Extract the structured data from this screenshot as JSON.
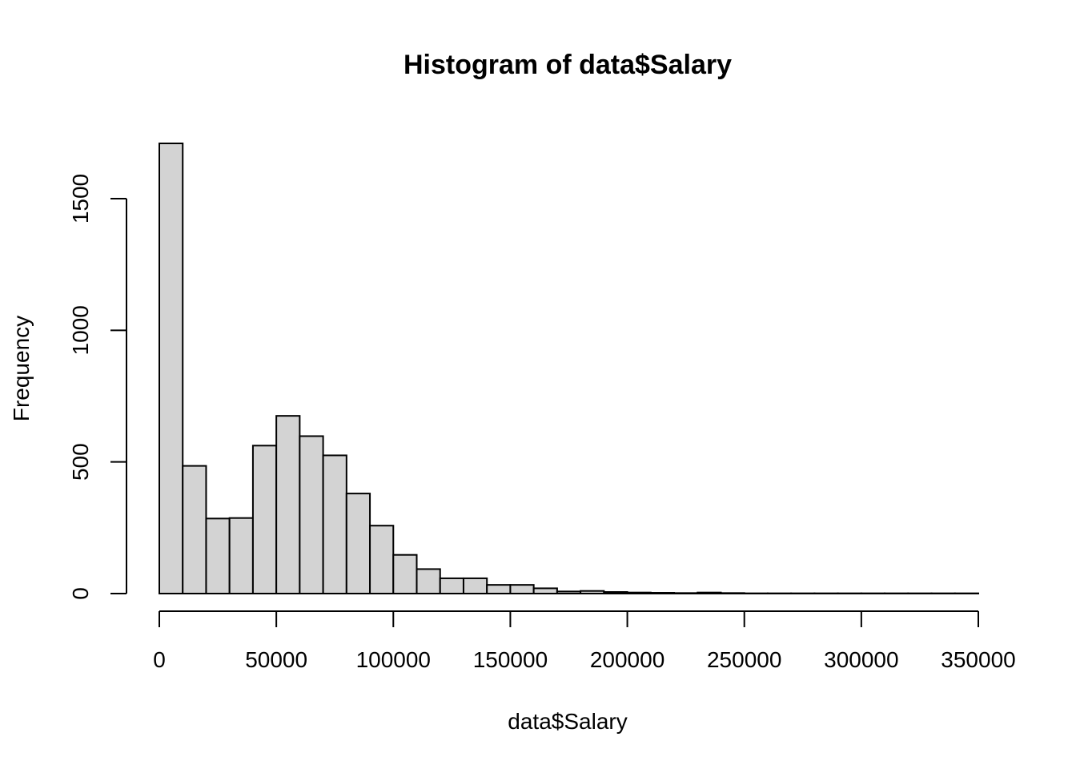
{
  "chart_data": {
    "type": "bar",
    "title": "Histogram of data$Salary",
    "xlabel": "data$Salary",
    "ylabel": "Frequency",
    "bar_color": "#d3d3d3",
    "bin_width": 10000,
    "bin_starts": [
      0,
      10000,
      20000,
      30000,
      40000,
      50000,
      60000,
      70000,
      80000,
      90000,
      100000,
      110000,
      120000,
      130000,
      140000,
      150000,
      160000,
      170000,
      180000,
      190000,
      200000,
      210000,
      220000,
      230000,
      240000,
      250000,
      260000,
      270000,
      280000,
      290000,
      300000,
      310000,
      320000,
      330000,
      340000
    ],
    "values": [
      1710,
      485,
      285,
      287,
      562,
      675,
      598,
      525,
      380,
      258,
      147,
      93,
      58,
      58,
      33,
      33,
      20,
      8,
      10,
      6,
      4,
      3,
      2,
      4,
      2,
      1,
      1,
      1,
      1,
      1,
      1,
      1,
      1,
      1,
      1
    ],
    "xlim": [
      0,
      350000
    ],
    "ylim": [
      0,
      1710
    ],
    "x_ticks": [
      0,
      50000,
      100000,
      150000,
      200000,
      250000,
      300000,
      350000
    ],
    "y_ticks": [
      0,
      500,
      1000,
      1500
    ],
    "grid": false
  }
}
